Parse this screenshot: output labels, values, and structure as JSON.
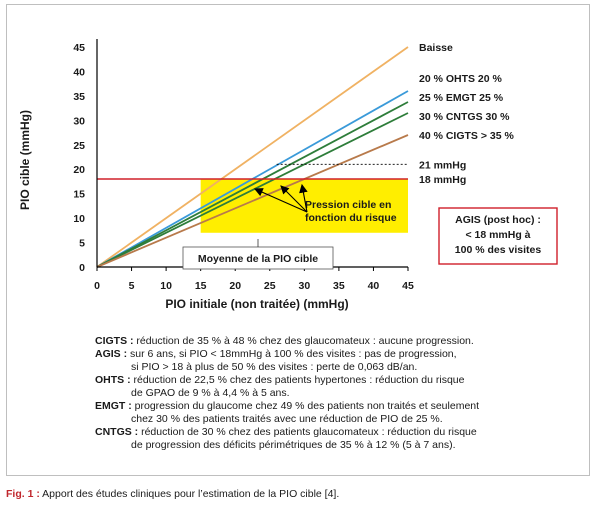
{
  "chart_data": {
    "type": "line",
    "xlabel": "PIO  initiale (non traitée) (mmHg)",
    "ylabel": "PIO cible (mmHg)",
    "xlim": [
      0,
      45
    ],
    "ylim": [
      0,
      45
    ],
    "xticks": [
      "0",
      "5",
      "10",
      "15",
      "20",
      "25",
      "30",
      "35",
      "40",
      "45"
    ],
    "yticks": [
      "0",
      "5",
      "10",
      "15",
      "20",
      "25",
      "30",
      "35",
      "40",
      "45"
    ],
    "grid": false,
    "series": [
      {
        "name": "Baisse",
        "color": "#f0b263",
        "x": [
          0,
          45
        ],
        "y": [
          0,
          45
        ]
      },
      {
        "name": "20 % OHTS 20 %",
        "color": "#3a9ad9",
        "x": [
          0,
          45
        ],
        "y": [
          0,
          36
        ]
      },
      {
        "name": "25 % EMGT 25 %",
        "color": "#2e7d3a",
        "x": [
          0,
          45
        ],
        "y": [
          0,
          33.75
        ]
      },
      {
        "name": "30 % CNTGS 30 %",
        "color": "#2e7d3a",
        "x": [
          0,
          45
        ],
        "y": [
          0,
          31.5
        ]
      },
      {
        "name": "40 % CIGTS > 35 %",
        "color": "#b87a4b",
        "x": [
          0,
          45
        ],
        "y": [
          0,
          27
        ]
      }
    ],
    "series_labels": [
      "Baisse",
      "20 % OHTS 20 %",
      "25 % EMGT 25 %",
      "30 % CNTGS 30 %",
      "40 % CIGTS > 35 %"
    ],
    "reference_lines": [
      {
        "label": "21 mmHg",
        "y": 21,
        "x_from": 26,
        "x_to": 45,
        "style": "dashed",
        "color": "#000000"
      },
      {
        "label": "18 mmHg",
        "y": 18,
        "x_from": 0,
        "x_to": 45,
        "style": "solid",
        "color": "#d0202a"
      }
    ],
    "band": {
      "x_from": 15,
      "x_to": 45,
      "y_from": 7,
      "y_to": 18,
      "color": "#ffee00"
    },
    "annotations": {
      "pression_cible": [
        "Pression cible en",
        "fonction du risque"
      ],
      "moyenne": "Moyenne de la PIO cible",
      "agis": [
        "AGIS (post hoc) :",
        "< 18 mmHg à",
        "100 % des visites"
      ]
    }
  },
  "notes": [
    {
      "key": "CIGTS :",
      "lines": [
        " réduction de 35 % à 48 % chez des glaucomateux : aucune progression."
      ]
    },
    {
      "key": "AGIS :",
      "lines": [
        " sur 6 ans, si PIO < 18mmHg à 100 % des visites : pas de progression,",
        "si PIO > 18 à plus de 50 % des visites : perte de 0,063 dB/an."
      ]
    },
    {
      "key": "OHTS :",
      "lines": [
        " réduction de 22,5 % chez des patients hypertones : réduction du risque",
        "de GPAO de 9 % à 4,4 % à 5 ans."
      ]
    },
    {
      "key": "EMGT :",
      "lines": [
        " progression du glaucome chez 49 % des patients non traités et seulement",
        "chez 30 % des patients traités avec une réduction de PIO de 25 %."
      ]
    },
    {
      "key": "CNTGS :",
      "lines": [
        " réduction de 30 % chez des patients glaucomateux : réduction du risque",
        "de progression des déficits périmétriques de 35 % à 12 % (5 à 7 ans)."
      ]
    }
  ],
  "caption": {
    "fig": "Fig. 1 :",
    "text": " Apport des études cliniques pour l’estimation de la PIO cible [4]."
  }
}
